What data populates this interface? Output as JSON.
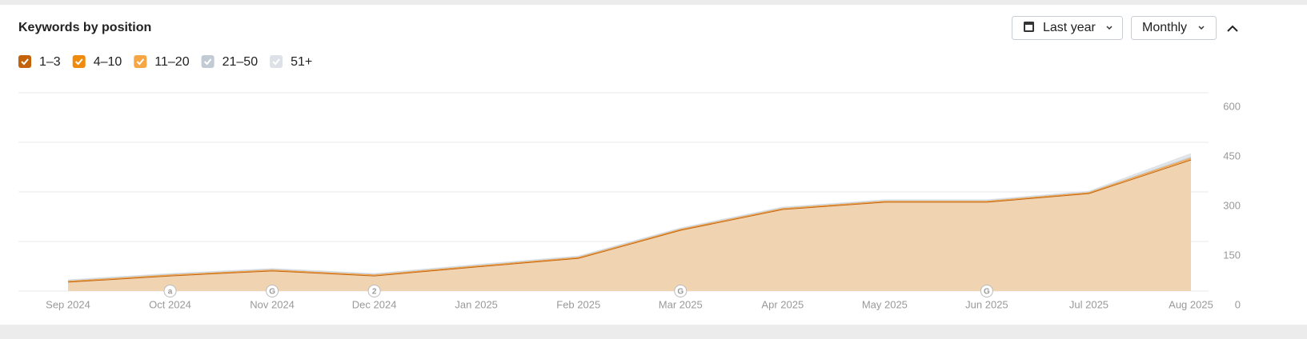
{
  "controls": {
    "period": "Last year",
    "interval": "Monthly"
  },
  "chart_data": {
    "type": "stacked-area",
    "title": "Keywords by position",
    "categories": [
      "Sep 2024",
      "Oct 2024",
      "Nov 2024",
      "Dec 2024",
      "Jan 2025",
      "Feb 2025",
      "Mar 2025",
      "Apr 2025",
      "May 2025",
      "Jun 2025",
      "Jul 2025",
      "Aug 2025"
    ],
    "series": [
      {
        "name": "1–3",
        "color": "#c4620a",
        "values": [
          28,
          47,
          62,
          47,
          74,
          100,
          185,
          248,
          270,
          270,
          296,
          398
        ]
      },
      {
        "name": "4–10",
        "color": "#f08a0c",
        "values": [
          2,
          2,
          2,
          2,
          2,
          2,
          2,
          2,
          2,
          2,
          2,
          3
        ]
      },
      {
        "name": "11–20",
        "color": "#f6a645",
        "values": [
          1,
          1,
          1,
          1,
          1,
          1,
          1,
          1,
          1,
          1,
          1,
          2
        ]
      },
      {
        "name": "21–50",
        "color": "#c2cad3",
        "values": [
          1,
          1,
          1,
          1,
          1,
          1,
          1,
          1,
          1,
          1,
          1,
          3
        ]
      },
      {
        "name": "51+",
        "color": "#dde2e8",
        "values": [
          2,
          2,
          2,
          2,
          2,
          2,
          2,
          2,
          2,
          2,
          2,
          10
        ]
      }
    ],
    "ylim": [
      0,
      600
    ],
    "yticks": [
      0,
      150,
      300,
      450,
      600
    ],
    "grid": true,
    "annotations": [
      {
        "x": "Oct 2024",
        "label": "a"
      },
      {
        "x": "Nov 2024",
        "label": "G"
      },
      {
        "x": "Dec 2024",
        "label": "2"
      },
      {
        "x": "Mar 2025",
        "label": "G"
      },
      {
        "x": "Jun 2025",
        "label": "G"
      }
    ]
  }
}
